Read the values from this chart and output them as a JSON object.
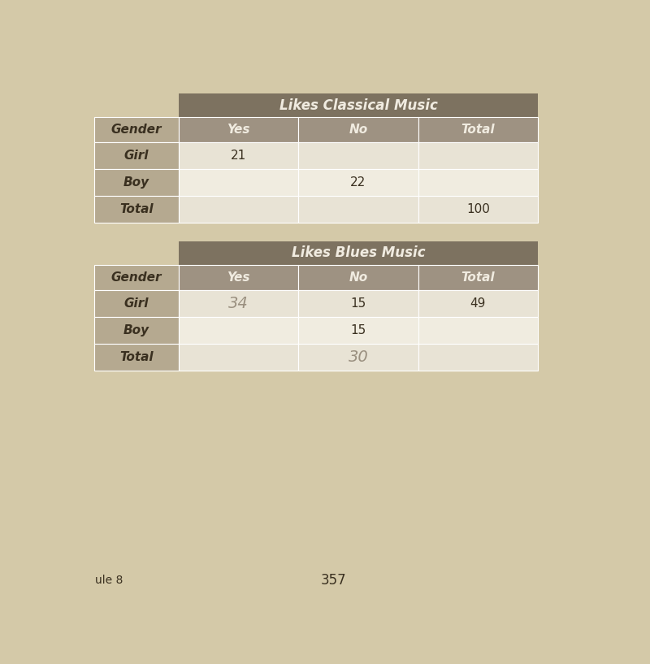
{
  "bg_color": "#d4c9a8",
  "table1": {
    "title": "Likes Classical Music",
    "title_bg": "#7d7260",
    "title_color": "#f0ebe0",
    "header_bg": "#9e9282",
    "header_color": "#f0ebe0",
    "row_bg_light": "#e8e3d5",
    "row_bg_lighter": "#f0ece0",
    "label_bg": "#b5a990",
    "label_color": "#3a3020",
    "cols": [
      "Gender",
      "Yes",
      "No",
      "Total"
    ],
    "rows": [
      [
        "Girl",
        "21",
        "",
        ""
      ],
      [
        "Boy",
        "",
        "22",
        ""
      ],
      [
        "Total",
        "",
        "",
        "100"
      ]
    ],
    "handwritten": {}
  },
  "table2": {
    "title": "Likes Blues Music",
    "title_bg": "#7d7260",
    "title_color": "#f0ebe0",
    "header_bg": "#9e9282",
    "header_color": "#f0ebe0",
    "row_bg_light": "#e8e3d5",
    "row_bg_lighter": "#f0ece0",
    "label_bg": "#b5a990",
    "label_color": "#3a3020",
    "cols": [
      "Gender",
      "Yes",
      "No",
      "Total"
    ],
    "rows": [
      [
        "Girl",
        "34",
        "15",
        "49"
      ],
      [
        "Boy",
        "",
        "15",
        ""
      ],
      [
        "Total",
        "",
        "30",
        ""
      ]
    ],
    "handwritten": {
      "0,1": true,
      "2,2": true
    }
  },
  "page_number": "357",
  "page_label": "ule 8",
  "printed_color": "#3a3020",
  "handwritten_color": "#9a9080"
}
